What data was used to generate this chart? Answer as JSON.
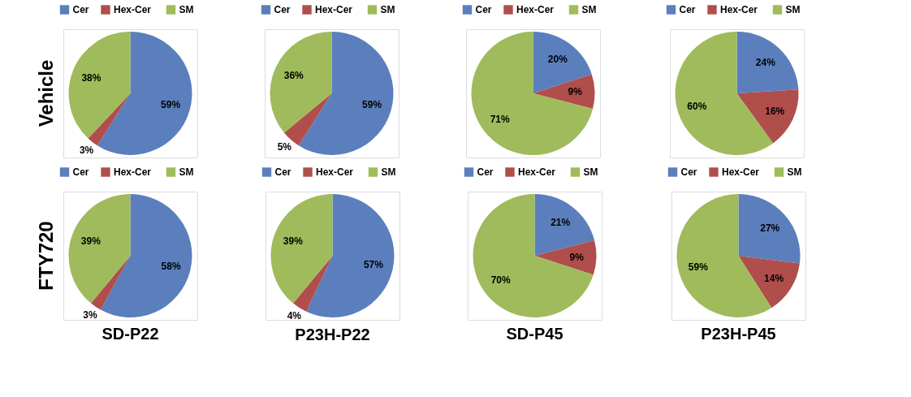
{
  "chart_data": [
    {
      "type": "pie",
      "ylabel": "Vehicle",
      "categories": [
        "Cer",
        "Hex-Cer",
        "SM"
      ],
      "values": [
        59,
        3,
        38
      ],
      "value_labels": [
        "59%",
        "3%",
        "38%"
      ],
      "colors": [
        "#5b7fbd",
        "#b04e4c",
        "#9fbb5c"
      ],
      "legend": "top"
    },
    {
      "type": "pie",
      "categories": [
        "Cer",
        "Hex-Cer",
        "SM"
      ],
      "values": [
        59,
        5,
        36
      ],
      "value_labels": [
        "59%",
        "5%",
        "36%"
      ],
      "colors": [
        "#5b7fbd",
        "#b04e4c",
        "#9fbb5c"
      ],
      "legend": "top"
    },
    {
      "type": "pie",
      "categories": [
        "Cer",
        "Hex-Cer",
        "SM"
      ],
      "values": [
        20,
        9,
        71
      ],
      "value_labels": [
        "20%",
        "9%",
        "71%"
      ],
      "colors": [
        "#5b7fbd",
        "#b04e4c",
        "#9fbb5c"
      ],
      "legend": "top"
    },
    {
      "type": "pie",
      "categories": [
        "Cer",
        "Hex-Cer",
        "SM"
      ],
      "values": [
        24,
        16,
        60
      ],
      "value_labels": [
        "24%",
        "16%",
        "60%"
      ],
      "colors": [
        "#5b7fbd",
        "#b04e4c",
        "#9fbb5c"
      ],
      "legend": "top"
    },
    {
      "type": "pie",
      "ylabel": "FTY720",
      "xlabel": "SD-P22",
      "categories": [
        "Cer",
        "Hex-Cer",
        "SM"
      ],
      "values": [
        58,
        3,
        39
      ],
      "value_labels": [
        "58%",
        "3%",
        "39%"
      ],
      "colors": [
        "#5b7fbd",
        "#b04e4c",
        "#9fbb5c"
      ],
      "legend": "top"
    },
    {
      "type": "pie",
      "xlabel": "P23H-P22",
      "categories": [
        "Cer",
        "Hex-Cer",
        "SM"
      ],
      "values": [
        57,
        4,
        39
      ],
      "value_labels": [
        "57%",
        "4%",
        "39%"
      ],
      "colors": [
        "#5b7fbd",
        "#b04e4c",
        "#9fbb5c"
      ],
      "legend": "top"
    },
    {
      "type": "pie",
      "xlabel": "SD-P45",
      "categories": [
        "Cer",
        "Hex-Cer",
        "SM"
      ],
      "values": [
        21,
        9,
        70
      ],
      "value_labels": [
        "21%",
        "9%",
        "70%"
      ],
      "colors": [
        "#5b7fbd",
        "#b04e4c",
        "#9fbb5c"
      ],
      "legend": "top"
    },
    {
      "type": "pie",
      "xlabel": "P23H-P45",
      "categories": [
        "Cer",
        "Hex-Cer",
        "SM"
      ],
      "values": [
        27,
        14,
        59
      ],
      "value_labels": [
        "27%",
        "14%",
        "59%"
      ],
      "colors": [
        "#5b7fbd",
        "#b04e4c",
        "#9fbb5c"
      ],
      "legend": "top"
    }
  ]
}
